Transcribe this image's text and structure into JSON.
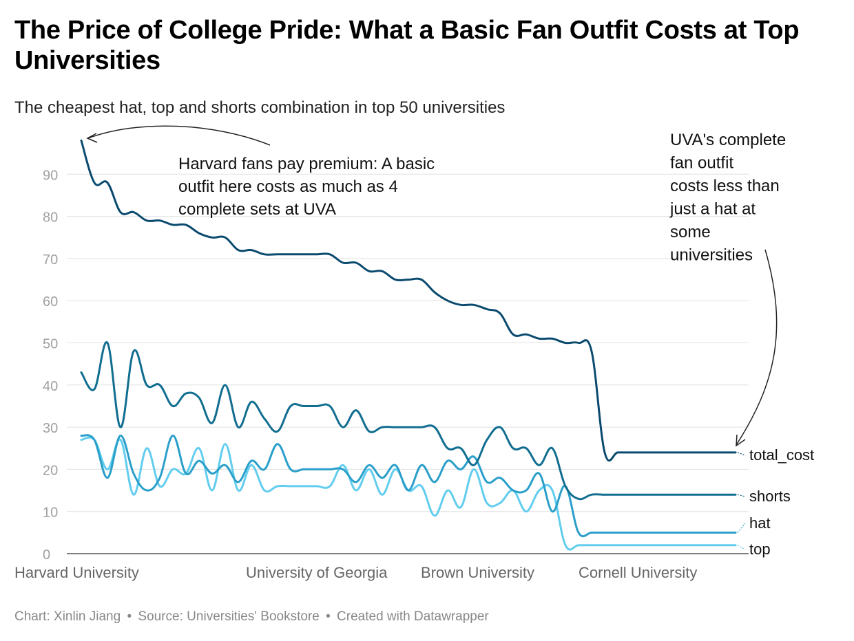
{
  "title": "The Price of College Pride: What a Basic Fan Outfit Costs at Top Universities",
  "subtitle": "The cheapest hat, top and shorts combination in top 50 universities",
  "footer": {
    "chart": "Chart: Xinlin Jiang",
    "source": "Source: Universities' Bookstore",
    "created": "Created with Datawrapper",
    "separator": "•"
  },
  "colors": {
    "total_cost": "#0a4a6e",
    "shorts": "#116e90",
    "hat": "#2a9fca",
    "top": "#62cdee",
    "grid": "#e0e0e0",
    "tick": "#a0a0a0",
    "category_label": "#666666"
  },
  "annotations": [
    {
      "text": "Harvard fans pay premium: A basic outfit here costs as much as 4 complete sets at UVA",
      "target": "Harvard University"
    },
    {
      "text": "UVA's complete fan outfit costs less than just a hat at some universities",
      "target": "total_cost at UVA"
    }
  ],
  "chart_data": {
    "type": "line",
    "x_axis_labels": [
      "Harvard University",
      "University of Georgia",
      "Brown University",
      "Cornell University"
    ],
    "y_ticks": [
      0,
      10,
      20,
      30,
      40,
      50,
      60,
      70,
      80,
      90
    ],
    "ylim": [
      0,
      100
    ],
    "grid": true,
    "legend": "direct labels at line ends",
    "x": [
      0,
      1,
      2,
      3,
      4,
      5,
      6,
      7,
      8,
      9,
      10,
      11,
      12,
      13,
      14,
      15,
      16,
      17,
      18,
      19,
      20,
      21,
      22,
      23,
      24,
      25,
      26,
      27,
      28,
      29,
      30,
      31,
      32,
      33,
      34,
      35,
      36,
      37,
      38,
      39,
      40,
      41,
      42,
      43,
      44,
      45,
      46,
      47,
      48,
      49,
      50
    ],
    "series": [
      {
        "name": "total_cost",
        "values": [
          98,
          88,
          88,
          81,
          81,
          79,
          79,
          78,
          78,
          76,
          75,
          75,
          72,
          72,
          71,
          71,
          71,
          71,
          71,
          71,
          69,
          69,
          67,
          67,
          65,
          65,
          65,
          62,
          60,
          59,
          59,
          58,
          57,
          52,
          52,
          51,
          51,
          50,
          50,
          48,
          24,
          24,
          24,
          24,
          24,
          24,
          24,
          24,
          24,
          24,
          24
        ]
      },
      {
        "name": "shorts",
        "values": [
          43,
          39,
          50,
          30,
          48,
          40,
          40,
          35,
          38,
          37,
          31,
          40,
          30,
          36,
          32,
          29,
          35,
          35,
          35,
          35,
          30,
          34,
          29,
          30,
          30,
          30,
          30,
          30,
          25,
          25,
          21,
          27,
          30,
          25,
          25,
          21,
          25,
          16,
          13,
          14,
          14,
          14,
          14,
          14,
          14,
          14,
          14,
          14,
          14,
          14,
          14
        ]
      },
      {
        "name": "hat",
        "values": [
          28,
          27,
          18,
          28,
          19,
          15,
          18,
          28,
          19,
          22,
          19,
          21,
          17,
          22,
          20,
          26,
          20,
          20,
          20,
          20,
          20,
          17,
          21,
          18,
          21,
          15,
          21,
          17,
          22,
          20,
          23,
          17,
          18,
          15,
          15,
          19,
          10,
          16,
          5,
          5,
          5,
          5,
          5,
          5,
          5,
          5,
          5,
          5,
          5,
          5,
          5
        ]
      },
      {
        "name": "top",
        "values": [
          27,
          27,
          20,
          27,
          14,
          25,
          16,
          20,
          19,
          25,
          15,
          26,
          15,
          21,
          15,
          16,
          16,
          16,
          16,
          16,
          21,
          15,
          20,
          14,
          20,
          15,
          16,
          9,
          15,
          11,
          20,
          12,
          12,
          15,
          10,
          15,
          15,
          2,
          2,
          2,
          2,
          2,
          2,
          2,
          2,
          2,
          2,
          2,
          2,
          2,
          2
        ]
      }
    ],
    "series_labels": [
      "total_cost",
      "shorts",
      "hat",
      "top"
    ]
  }
}
